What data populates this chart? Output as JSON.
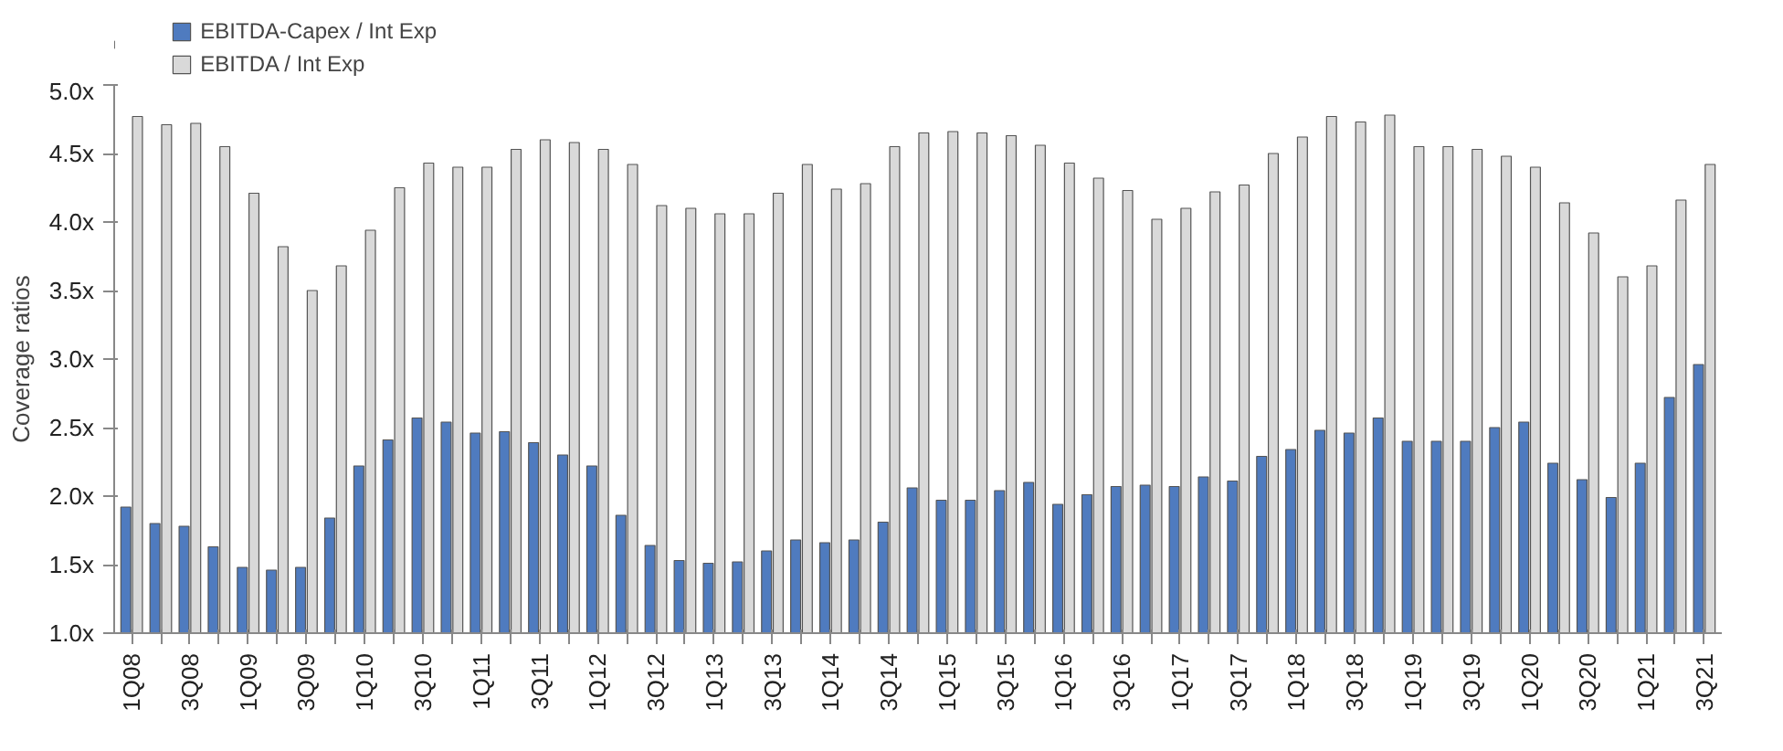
{
  "chart_data": {
    "type": "bar",
    "ylabel": "Coverage ratios",
    "categories": [
      "1Q08",
      null,
      "3Q08",
      null,
      "1Q09",
      null,
      "3Q09",
      null,
      "1Q10",
      null,
      "3Q10",
      null,
      "1Q11",
      null,
      "3Q11",
      null,
      "1Q12",
      null,
      "3Q12",
      null,
      "1Q13",
      null,
      "3Q13",
      null,
      "1Q14",
      null,
      "3Q14",
      null,
      "1Q15",
      null,
      "3Q15",
      null,
      "1Q16",
      null,
      "3Q16",
      null,
      "1Q17",
      null,
      "3Q17",
      null,
      "1Q18",
      null,
      "3Q18",
      null,
      "1Q19",
      null,
      "3Q19",
      null,
      "1Q20",
      null,
      "3Q20",
      null,
      "1Q21",
      null,
      "3Q21"
    ],
    "series": [
      {
        "name": "EBITDA-Capex / Int Exp",
        "color": "#4f7bbf",
        "values": [
          1.92,
          1.8,
          1.78,
          1.63,
          1.48,
          1.46,
          1.48,
          1.84,
          2.22,
          2.41,
          2.57,
          2.54,
          2.46,
          2.47,
          2.39,
          2.3,
          2.22,
          1.86,
          1.64,
          1.53,
          1.51,
          1.52,
          1.6,
          1.68,
          1.66,
          1.68,
          1.81,
          2.06,
          1.97,
          1.97,
          2.04,
          2.1,
          1.94,
          2.01,
          2.07,
          2.08,
          2.07,
          2.14,
          2.11,
          2.29,
          2.34,
          2.48,
          2.46,
          2.57,
          2.4,
          2.4,
          2.4,
          2.5,
          2.54,
          2.24,
          2.12,
          1.99,
          2.24,
          2.72,
          2.96
        ]
      },
      {
        "name": "EBITDA / Int Exp",
        "color": "#d9d9d9",
        "values": [
          4.77,
          4.71,
          4.72,
          4.55,
          4.21,
          3.82,
          3.5,
          3.68,
          3.94,
          4.25,
          4.43,
          4.4,
          4.4,
          4.53,
          4.6,
          4.58,
          4.53,
          4.42,
          4.12,
          4.1,
          4.06,
          4.06,
          4.21,
          4.42,
          4.24,
          4.28,
          4.55,
          4.65,
          4.66,
          4.65,
          4.63,
          4.56,
          4.43,
          4.32,
          4.23,
          4.02,
          4.1,
          4.22,
          4.27,
          4.5,
          4.62,
          4.77,
          4.73,
          4.78,
          4.55,
          4.55,
          4.53,
          4.48,
          4.4,
          4.14,
          3.92,
          3.6,
          3.68,
          4.16,
          4.42
        ]
      }
    ],
    "ylim": [
      1.0,
      5.0
    ],
    "yticks": [
      {
        "value": 1.0,
        "label": "1.0x"
      },
      {
        "value": 1.5,
        "label": "1.5x"
      },
      {
        "value": 2.0,
        "label": "2.0x"
      },
      {
        "value": 2.5,
        "label": "2.5x"
      },
      {
        "value": 3.0,
        "label": "3.0x"
      },
      {
        "value": 3.5,
        "label": "3.5x"
      },
      {
        "value": 4.0,
        "label": "4.0x"
      },
      {
        "value": 4.5,
        "label": "4.5x"
      },
      {
        "value": 5.0,
        "label": "5.0x"
      }
    ],
    "legend": "top left",
    "grid": false
  }
}
